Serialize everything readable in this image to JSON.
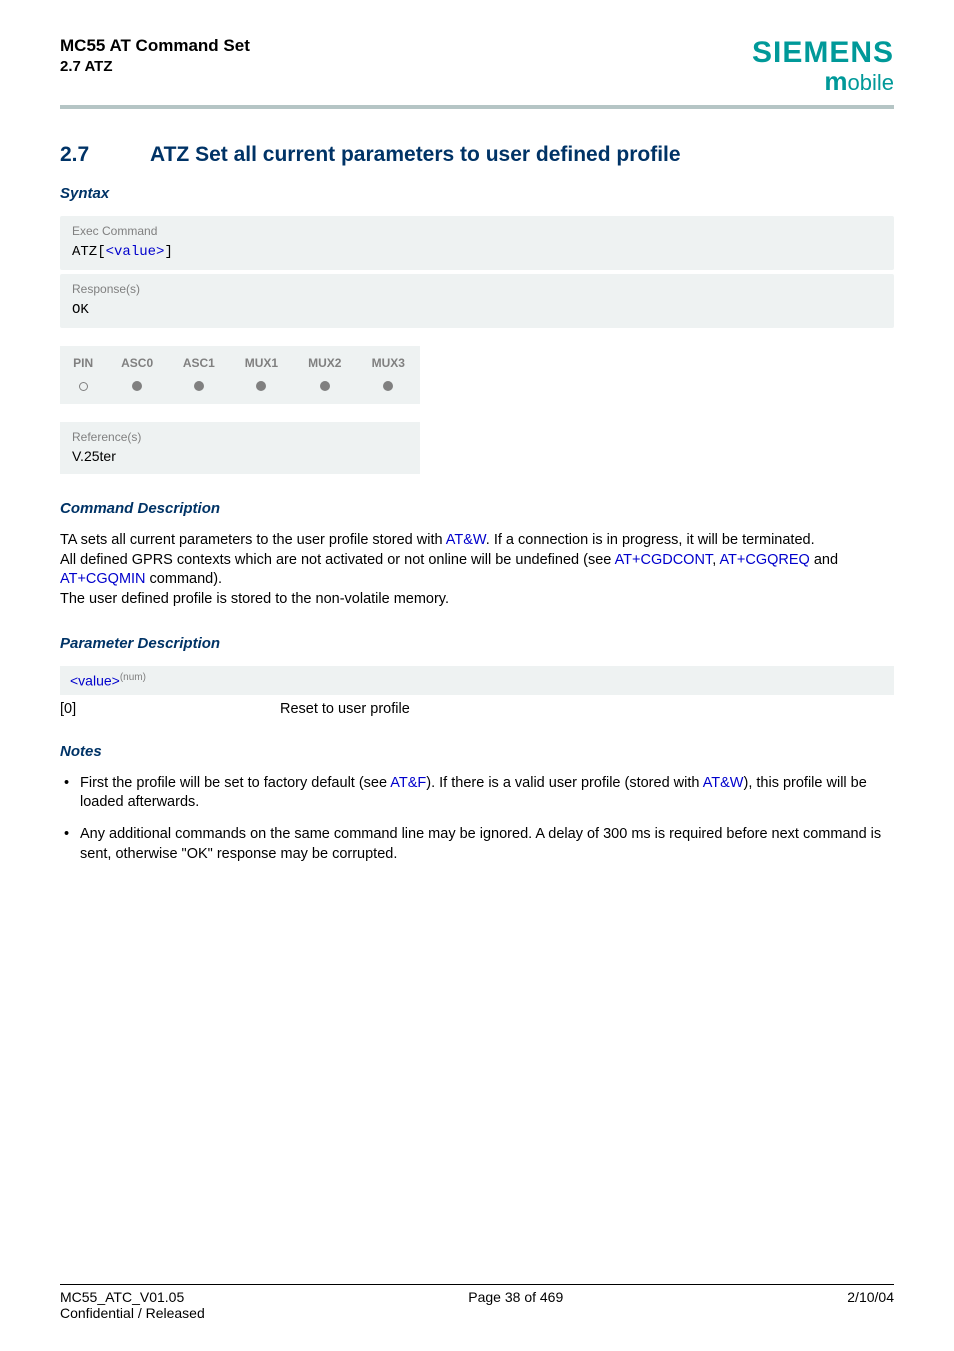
{
  "header": {
    "doc_title": "MC55 AT Command Set",
    "doc_sub": "2.7 ATZ",
    "brand_name": "SIEMENS",
    "brand_sub_m": "m",
    "brand_sub_rest": "obile",
    "rule_color": "#b5c5c5"
  },
  "section": {
    "num": "2.7",
    "title": "ATZ   Set all current parameters to user defined profile",
    "heading_color": "#003366",
    "heading_fontsize": 21
  },
  "syntax": {
    "label": "Syntax",
    "exec_label": "Exec Command",
    "exec_prefix": "ATZ",
    "exec_bracket_open": "[",
    "exec_link": "<value>",
    "exec_bracket_close": "]",
    "resp_label": "Response(s)",
    "resp_text": "OK",
    "box_bg": "#eef2f2",
    "label_color": "#808080"
  },
  "cap_table": {
    "headers": [
      "PIN",
      "ASC0",
      "ASC1",
      "MUX1",
      "MUX2",
      "MUX3"
    ],
    "values": [
      "open",
      "filled",
      "filled",
      "filled",
      "filled",
      "filled"
    ],
    "dot_color": "#808080"
  },
  "references": {
    "label": "Reference(s)",
    "text": "V.25ter"
  },
  "cmd_desc": {
    "label": "Command Description",
    "p1_a": "TA sets all current parameters to the user profile stored with ",
    "p1_link": "AT&W",
    "p1_b": ". If a connection is in progress, it will be terminated.",
    "p2_a": "All defined GPRS contexts which are not activated or not online will be undefined (see ",
    "p2_link1": "AT+CGDCONT",
    "p2_b": ", ",
    "p2_link2": "AT+CGQREQ",
    "p2_c": " and ",
    "p2_link3": "AT+CGQMIN",
    "p2_d": " command).",
    "p3": "The user defined profile is stored to the non-volatile memory."
  },
  "param_desc": {
    "label": "Parameter Description",
    "param_name": "<value>",
    "param_sup": "(num)",
    "val_key": "[0]",
    "val_text": "Reset to user profile"
  },
  "notes": {
    "label": "Notes",
    "n1_a": "First the profile will be set to factory default (see ",
    "n1_link1": "AT&F",
    "n1_b": "). If there is a valid user profile (stored with ",
    "n1_link2": "AT&W",
    "n1_c": "), this profile will be loaded afterwards.",
    "n2": "Any additional commands on the same command line may be ignored. A delay of 300 ms is required before next command is sent, otherwise \"OK\" response may be corrupted."
  },
  "footer": {
    "left": "MC55_ATC_V01.05",
    "center": "Page 38 of 469",
    "right": "2/10/04",
    "left2": "Confidential / Released"
  },
  "colors": {
    "brand": "#009999",
    "link": "#0000cc",
    "text": "#000000",
    "bg": "#ffffff"
  }
}
